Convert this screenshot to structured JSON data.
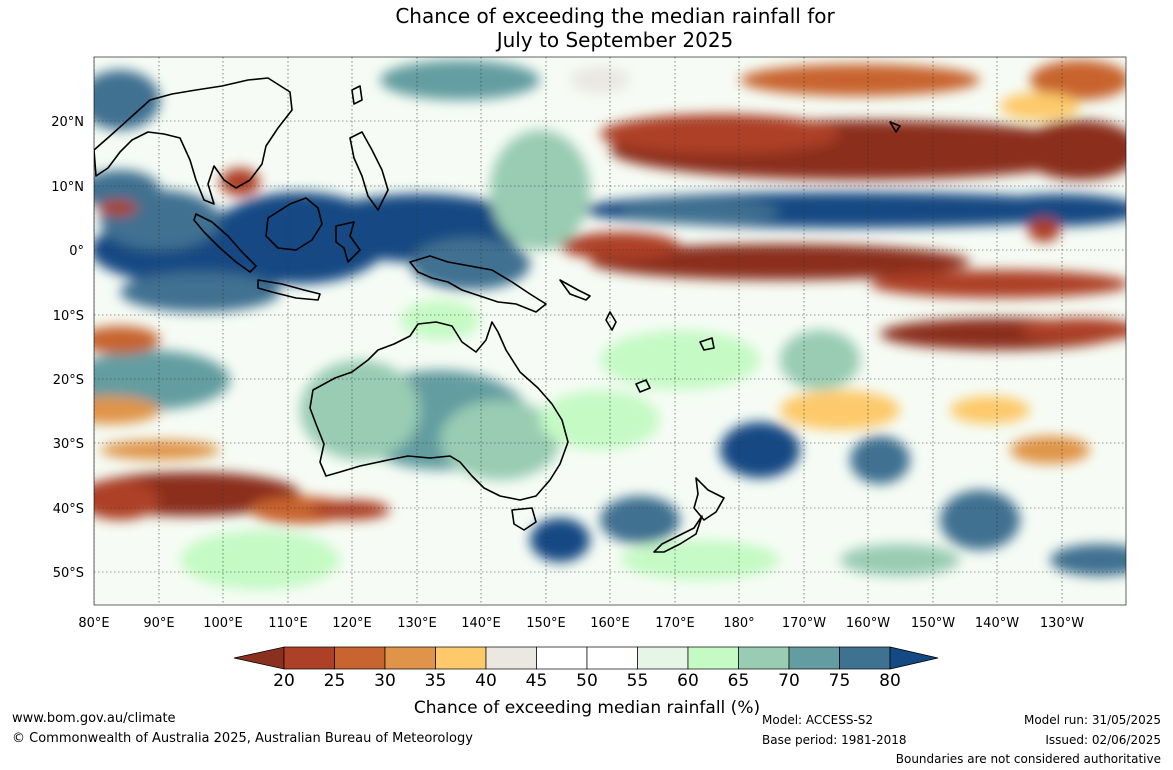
{
  "title": {
    "line1": "Chance of exceeding the median rainfall for",
    "line2": "July to September 2025"
  },
  "map": {
    "lat_labels": [
      "20°N",
      "10°N",
      "0°",
      "10°S",
      "20°S",
      "30°S",
      "40°S",
      "50°S"
    ],
    "lon_labels": [
      "80°E",
      "90°E",
      "100°E",
      "110°E",
      "120°E",
      "130°E",
      "140°E",
      "150°E",
      "160°E",
      "170°E",
      "180°",
      "170°W",
      "160°W",
      "150°W",
      "140°W",
      "130°W"
    ]
  },
  "colorbar": {
    "ticks": [
      "20",
      "25",
      "30",
      "35",
      "40",
      "45",
      "50",
      "55",
      "60",
      "65",
      "70",
      "75",
      "80"
    ],
    "colors": [
      "#8b2f1e",
      "#ad4127",
      "#c8642f",
      "#e0944a",
      "#fdc96a",
      "#eae8e1",
      "#ffffff",
      "#ffffff",
      "#e6f5e6",
      "#c5fac5",
      "#99ccb2",
      "#649da1",
      "#3f7191",
      "#134a83"
    ],
    "label": "Chance of exceeding median rainfall (%)"
  },
  "footer": {
    "url": "www.bom.gov.au/climate",
    "copyright": "© Commonwealth of Australia 2025, Australian Bureau of Meteorology",
    "model": "Model: ACCESS-S2",
    "base_period": "Base period: 1981-2018",
    "model_run": "Model run: 31/05/2025",
    "issued": "Issued: 02/06/2025",
    "disclaimer": "Boundaries are not considered authoritative"
  }
}
